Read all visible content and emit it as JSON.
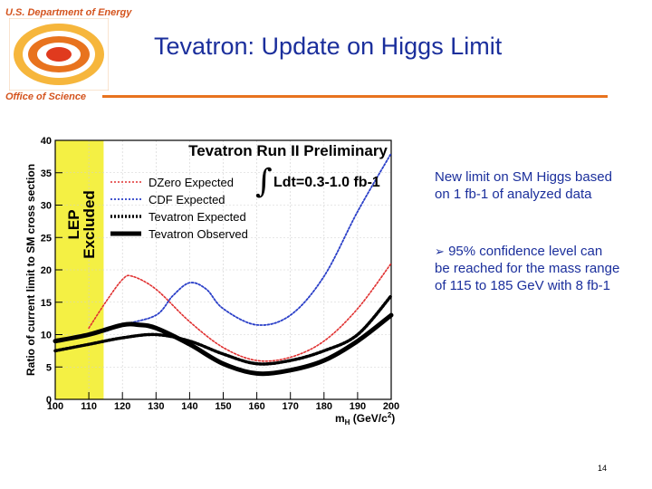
{
  "header": {
    "agency": "U.S. Department of Energy",
    "office": "Office of Science",
    "title": "Tevatron: Update on Higgs Limit"
  },
  "bullets": [
    "New limit on SM Higgs based on 1 fb-1 of analyzed data",
    "95% confidence level can be reached for the mass range of 115 to 185 GeV with 8 fb-1"
  ],
  "page_number": "14",
  "colors": {
    "title": "#1b2f9c",
    "accent": "#e8731e",
    "dzero": "#e03030",
    "cdf": "#2a3fc8",
    "lep_band": "#f4f044"
  },
  "chart_data": {
    "type": "line",
    "title": "Tevatron Run II Preliminary",
    "annotation": "Ldt=0.3-1.0 fb-1",
    "band_label_line1": "LEP",
    "band_label_line2": "Excluded",
    "band_range": [
      100,
      114.4
    ],
    "xlabel": "mH (GeV/c2)",
    "ylabel": "Ratio of current limit to SM cross section",
    "xlim": [
      100,
      200
    ],
    "ylim": [
      0,
      40
    ],
    "xticks": [
      100,
      110,
      120,
      130,
      140,
      150,
      160,
      170,
      180,
      190,
      200
    ],
    "yticks": [
      0,
      5,
      10,
      15,
      20,
      25,
      30,
      35,
      40
    ],
    "series": [
      {
        "name": "DZero Expected",
        "style": "dotted-red",
        "x": [
          110,
          115,
          120,
          123,
          130,
          140,
          150,
          160,
          170,
          180,
          190,
          200
        ],
        "y": [
          11,
          15,
          18.5,
          19,
          17,
          12,
          8,
          6,
          6.5,
          9,
          14,
          21
        ]
      },
      {
        "name": "CDF Expected",
        "style": "dotted-blue",
        "x": [
          110,
          115,
          120,
          130,
          135,
          140,
          145,
          150,
          160,
          170,
          180,
          190,
          200
        ],
        "y": [
          10,
          10.5,
          11.5,
          13,
          16,
          18,
          17,
          14,
          11.5,
          13,
          19,
          29,
          38
        ]
      },
      {
        "name": "Tevatron Expected",
        "style": "heavy-dotted-black",
        "x": [
          100,
          110,
          120,
          130,
          140,
          150,
          160,
          170,
          180,
          190,
          200
        ],
        "y": [
          7.5,
          8.5,
          9.5,
          10,
          9,
          7,
          5.5,
          6,
          7.5,
          10,
          16
        ]
      },
      {
        "name": "Tevatron Observed",
        "style": "solid-black",
        "x": [
          100,
          110,
          120,
          125,
          130,
          140,
          150,
          160,
          170,
          180,
          190,
          200
        ],
        "y": [
          9,
          10,
          11.5,
          11.5,
          11,
          8.5,
          5.5,
          4,
          4.5,
          6,
          9,
          13
        ]
      }
    ]
  }
}
